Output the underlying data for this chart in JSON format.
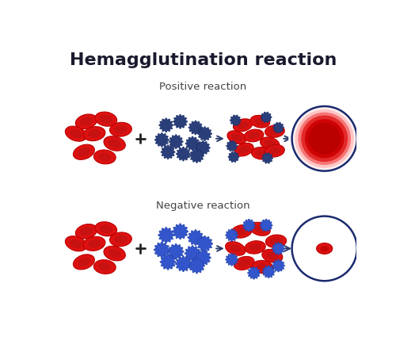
{
  "title": "Hemagglutination reaction",
  "positive_label": "Positive reaction",
  "negative_label": "Negative reaction",
  "bg_color": "#ffffff",
  "title_color": "#1a1a2e",
  "label_color": "#444444",
  "rbc_color": "#dd1111",
  "rbc_dark": "#bb0000",
  "rbc_light": "#ff6666",
  "virus_pos_color": "#2a3f7a",
  "virus_pos_edge": "#1a2f6a",
  "virus_neg_color": "#3355cc",
  "virus_neg_edge": "#2244aa",
  "arrow_color": "#2a3a6a",
  "ring_color": "#1a2a6e",
  "title_fontsize": 16,
  "label_fontsize": 9.5
}
